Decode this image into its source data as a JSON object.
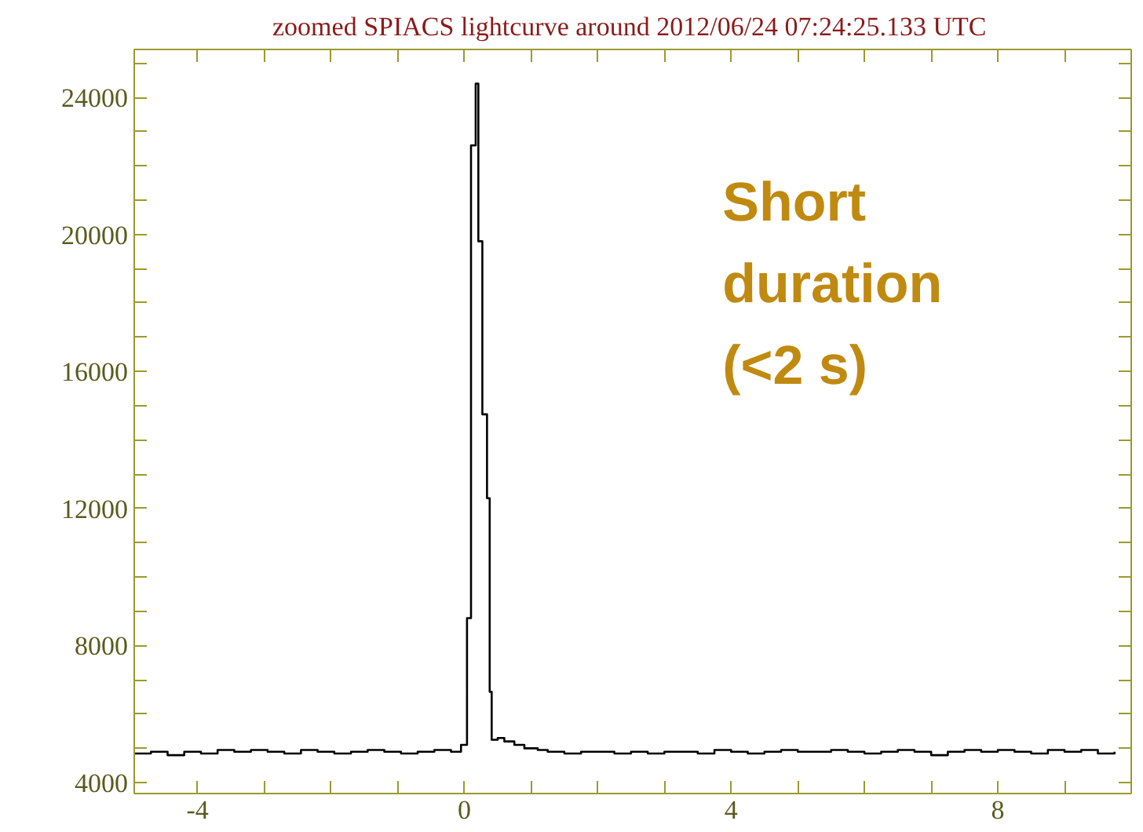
{
  "chart_data": {
    "type": "step",
    "title": "zoomed SPIACS lightcurve around 2012/06/24  07:24:25.133 UTC",
    "annotations": [
      "Short\nduration\n(<2 s)"
    ],
    "series": [
      {
        "color": "#000000",
        "x": [
          -4.95,
          -4.7,
          -4.45,
          -4.2,
          -3.95,
          -3.7,
          -3.45,
          -3.2,
          -2.95,
          -2.7,
          -2.45,
          -2.2,
          -1.95,
          -1.7,
          -1.45,
          -1.2,
          -0.95,
          -0.7,
          -0.45,
          -0.2,
          -0.05,
          0.04,
          0.1,
          0.17,
          0.21,
          0.27,
          0.34,
          0.38,
          0.41,
          0.5,
          0.6,
          0.75,
          0.9,
          1.1,
          1.25,
          1.5,
          1.75,
          2.0,
          2.25,
          2.5,
          2.75,
          3.0,
          3.25,
          3.5,
          3.75,
          4.0,
          4.25,
          4.5,
          4.75,
          5.0,
          5.25,
          5.5,
          5.75,
          6.0,
          6.25,
          6.5,
          6.75,
          7.0,
          7.25,
          7.5,
          7.75,
          8.0,
          8.25,
          8.5,
          8.75,
          9.0,
          9.25,
          9.5,
          9.75
        ],
        "values": [
          4850,
          4900,
          4800,
          4900,
          4850,
          4950,
          4900,
          4950,
          4900,
          4850,
          4950,
          4900,
          4850,
          4900,
          4950,
          4900,
          4850,
          4900,
          4950,
          4900,
          5100,
          8800,
          22600,
          24400,
          19800,
          14750,
          12300,
          6650,
          5250,
          5300,
          5200,
          5100,
          5000,
          4950,
          4900,
          4850,
          4900,
          4900,
          4850,
          4900,
          4850,
          4900,
          4900,
          4850,
          4950,
          4900,
          4850,
          4900,
          4950,
          4900,
          4900,
          4950,
          4900,
          4850,
          4900,
          4950,
          4900,
          4800,
          4900,
          4950,
          4900,
          4950,
          4900,
          4850,
          4950,
          4900,
          4950,
          4850,
          4900
        ]
      }
    ],
    "xlim": [
      -4.95,
      10
    ],
    "xticks": [
      {
        "value": -4,
        "label": "-4"
      },
      {
        "value": -3,
        "label": null
      },
      {
        "value": -2,
        "label": null
      },
      {
        "value": -1,
        "label": null
      },
      0,
      {
        "value": 1,
        "label": null
      },
      {
        "value": 2,
        "label": null
      },
      {
        "value": 3,
        "label": null
      },
      4,
      {
        "value": 5,
        "label": null
      },
      {
        "value": 6,
        "label": null
      },
      {
        "value": 7,
        "label": null
      },
      8,
      {
        "value": 9,
        "label": null
      }
    ],
    "ylim": [
      3680,
      25400
    ],
    "yticks": [
      4000,
      {
        "value": 5000,
        "label": null
      },
      {
        "value": 6000,
        "label": null
      },
      {
        "value": 7000,
        "label": null
      },
      8000,
      {
        "value": 9000,
        "label": null
      },
      {
        "value": 10000,
        "label": null
      },
      {
        "value": 11000,
        "label": null
      },
      12000,
      {
        "value": 13000,
        "label": null
      },
      {
        "value": 14000,
        "label": null
      },
      {
        "value": 15000,
        "label": null
      },
      16000,
      {
        "value": 17000,
        "label": null
      },
      {
        "value": 18000,
        "label": null
      },
      {
        "value": 19000,
        "label": null
      },
      20000,
      {
        "value": 21000,
        "label": null
      },
      {
        "value": 22000,
        "label": null
      },
      {
        "value": 23000,
        "label": null
      },
      24000,
      {
        "value": 25000,
        "label": null
      }
    ],
    "grid": false
  }
}
